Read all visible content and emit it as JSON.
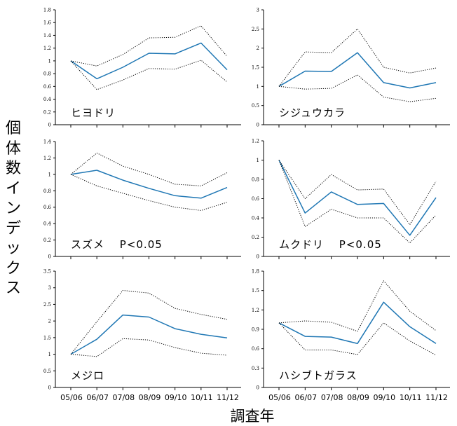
{
  "figure": {
    "ylabel_chars": [
      "個",
      "体",
      "数",
      "イ",
      "ン",
      "デ",
      "ッ",
      "ク",
      "ス"
    ],
    "xlabel": "調査年"
  },
  "chart_data": [
    {
      "type": "line",
      "title": "ヒヨドリ",
      "categories": [
        "05/06",
        "06/07",
        "07/08",
        "08/09",
        "09/10",
        "10/11",
        "11/12"
      ],
      "ylim": [
        0,
        1.8
      ],
      "yticks": [
        "0",
        "0.2",
        "0.4",
        "0.6",
        "0.8",
        "1",
        "1.2",
        "1.4",
        "1.6",
        "1.8"
      ],
      "series": [
        {
          "role": "estimate",
          "values": [
            1.0,
            0.72,
            0.9,
            1.12,
            1.11,
            1.28,
            0.86
          ]
        },
        {
          "role": "upper",
          "values": [
            1.0,
            0.92,
            1.1,
            1.36,
            1.37,
            1.55,
            1.07
          ]
        },
        {
          "role": "lower",
          "values": [
            1.0,
            0.55,
            0.7,
            0.88,
            0.87,
            1.01,
            0.67
          ]
        }
      ]
    },
    {
      "type": "line",
      "title": "シジュウカラ",
      "categories": [
        "05/06",
        "06/07",
        "07/08",
        "08/09",
        "09/10",
        "10/11",
        "11/12"
      ],
      "ylim": [
        0,
        3
      ],
      "yticks": [
        "0",
        "0.5",
        "1",
        "1.5",
        "2",
        "2.5",
        "3"
      ],
      "series": [
        {
          "role": "estimate",
          "values": [
            1.0,
            1.4,
            1.39,
            1.88,
            1.1,
            0.96,
            1.1
          ]
        },
        {
          "role": "upper",
          "values": [
            1.0,
            1.9,
            1.88,
            2.5,
            1.5,
            1.35,
            1.48
          ]
        },
        {
          "role": "lower",
          "values": [
            1.0,
            0.93,
            0.95,
            1.3,
            0.72,
            0.6,
            0.69
          ]
        }
      ]
    },
    {
      "type": "line",
      "title": "スズメ　 P<0.05",
      "categories": [
        "05/06",
        "06/07",
        "07/08",
        "08/09",
        "09/10",
        "10/11",
        "11/12"
      ],
      "ylim": [
        0,
        1.4
      ],
      "yticks": [
        "0",
        "0.2",
        "0.4",
        "0.6",
        "0.8",
        "1",
        "1.2",
        "1.4"
      ],
      "series": [
        {
          "role": "estimate",
          "values": [
            1.0,
            1.05,
            0.93,
            0.83,
            0.74,
            0.71,
            0.84
          ]
        },
        {
          "role": "upper",
          "values": [
            1.0,
            1.26,
            1.1,
            1.0,
            0.88,
            0.86,
            1.02
          ]
        },
        {
          "role": "lower",
          "values": [
            1.0,
            0.86,
            0.77,
            0.68,
            0.6,
            0.56,
            0.66
          ]
        }
      ]
    },
    {
      "type": "line",
      "title": "ムクドリ　 P<0.05",
      "categories": [
        "05/06",
        "06/07",
        "07/08",
        "08/09",
        "09/10",
        "10/11",
        "11/12"
      ],
      "ylim": [
        0,
        1.2
      ],
      "yticks": [
        "0",
        "0.2",
        "0.4",
        "0.6",
        "0.8",
        "1",
        "1.2"
      ],
      "series": [
        {
          "role": "estimate",
          "values": [
            1.0,
            0.45,
            0.67,
            0.54,
            0.55,
            0.22,
            0.61
          ]
        },
        {
          "role": "upper",
          "values": [
            1.0,
            0.6,
            0.85,
            0.69,
            0.7,
            0.33,
            0.78
          ]
        },
        {
          "role": "lower",
          "values": [
            1.0,
            0.31,
            0.49,
            0.4,
            0.4,
            0.14,
            0.43
          ]
        }
      ]
    },
    {
      "type": "line",
      "title": "メジロ",
      "categories": [
        "05/06",
        "06/07",
        "07/08",
        "08/09",
        "09/10",
        "10/11",
        "11/12"
      ],
      "ylim": [
        0,
        3.5
      ],
      "yticks": [
        "0",
        "0.5",
        "1",
        "1.5",
        "2",
        "2.5",
        "3",
        "3.5"
      ],
      "series": [
        {
          "role": "estimate",
          "values": [
            1.0,
            1.45,
            2.18,
            2.12,
            1.77,
            1.6,
            1.49
          ]
        },
        {
          "role": "upper",
          "values": [
            1.0,
            1.98,
            2.92,
            2.84,
            2.38,
            2.2,
            2.05
          ]
        },
        {
          "role": "lower",
          "values": [
            1.0,
            0.93,
            1.47,
            1.43,
            1.2,
            1.03,
            0.97
          ]
        }
      ]
    },
    {
      "type": "line",
      "title": "ハシブトガラス",
      "categories": [
        "05/06",
        "06/07",
        "07/08",
        "08/09",
        "09/10",
        "10/11",
        "11/12"
      ],
      "ylim": [
        0,
        1.8
      ],
      "yticks": [
        "0",
        "0.3",
        "0.6",
        "0.9",
        "1.2",
        "1.5",
        "1.8"
      ],
      "series": [
        {
          "role": "estimate",
          "values": [
            1.0,
            0.79,
            0.78,
            0.68,
            1.32,
            0.94,
            0.68
          ]
        },
        {
          "role": "upper",
          "values": [
            1.0,
            1.03,
            1.01,
            0.87,
            1.65,
            1.18,
            0.88
          ]
        },
        {
          "role": "lower",
          "values": [
            1.0,
            0.58,
            0.58,
            0.51,
            1.0,
            0.72,
            0.5
          ]
        }
      ]
    }
  ],
  "colors": {
    "estimate": "#1f77b4",
    "ci": "#000000",
    "axis": "#000000"
  }
}
